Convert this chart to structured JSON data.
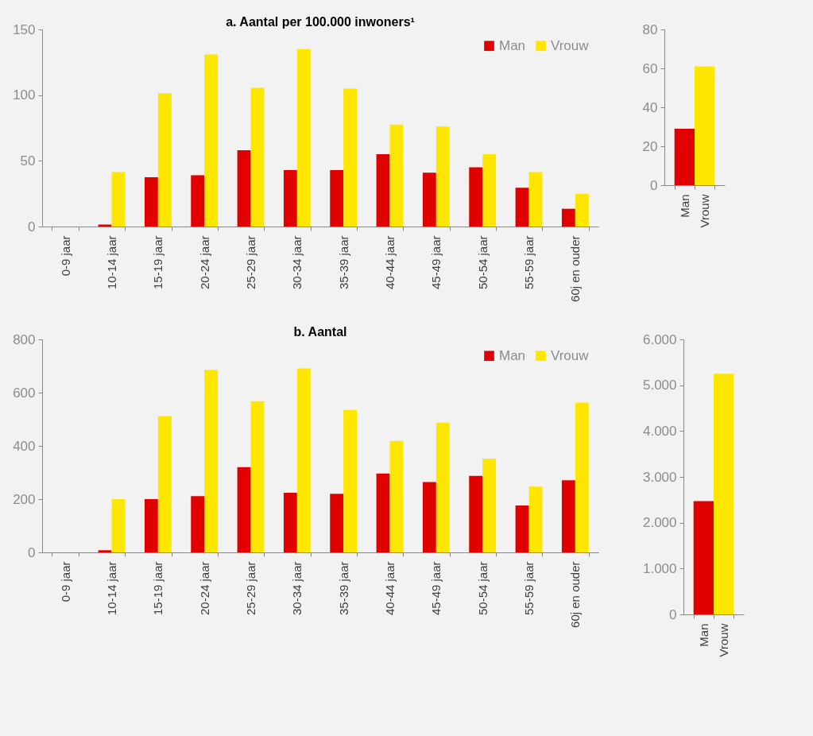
{
  "chart_data": [
    {
      "type": "bar",
      "title": "a. Aantal per 100.000 inwoners¹",
      "categories": [
        "0-9 jaar",
        "10-14 jaar",
        "15-19 jaar",
        "20-24 jaar",
        "25-29 jaar",
        "30-34 jaar",
        "35-39 jaar",
        "40-44 jaar",
        "45-49 jaar",
        "50-54 jaar",
        "55-59 jaar",
        "60j en ouder"
      ],
      "series": [
        {
          "name": "Man",
          "color": "#e00000",
          "values": [
            0,
            1.5,
            37.5,
            39,
            58,
            43,
            43,
            55,
            41,
            45,
            29.5,
            13.5
          ]
        },
        {
          "name": "Vrouw",
          "color": "#ffe600",
          "values": [
            0,
            41.5,
            101.5,
            131,
            105.5,
            135,
            105,
            77.5,
            76,
            55,
            41.5,
            25
          ]
        }
      ],
      "ylim": [
        0,
        150
      ],
      "yticks": [
        0,
        50,
        100,
        150
      ],
      "legend": "top right"
    },
    {
      "type": "bar",
      "categories": [
        "Man",
        "Vrouw"
      ],
      "values": [
        29,
        61
      ],
      "colors": [
        "#e00000",
        "#ffe600"
      ],
      "ylim": [
        0,
        80
      ],
      "yticks": [
        0,
        20,
        40,
        60,
        80
      ]
    },
    {
      "type": "bar",
      "title": "b. Aantal",
      "categories": [
        "0-9 jaar",
        "10-14 jaar",
        "15-19 jaar",
        "20-24 jaar",
        "25-29 jaar",
        "30-34 jaar",
        "35-39 jaar",
        "40-44 jaar",
        "45-49 jaar",
        "50-54 jaar",
        "55-59 jaar",
        "60j en ouder"
      ],
      "series": [
        {
          "name": "Man",
          "color": "#e00000",
          "values": [
            0,
            8,
            200,
            211,
            320,
            224,
            220,
            296,
            264,
            287,
            176,
            271
          ]
        },
        {
          "name": "Vrouw",
          "color": "#ffe600",
          "values": [
            0,
            200,
            512,
            686,
            568,
            691,
            535,
            419,
            487,
            352,
            247,
            563
          ]
        }
      ],
      "ylim": [
        0,
        800
      ],
      "yticks": [
        0,
        200,
        400,
        600,
        800
      ],
      "legend": "top right"
    },
    {
      "type": "bar",
      "categories": [
        "Man",
        "Vrouw"
      ],
      "values": [
        2470,
        5250
      ],
      "colors": [
        "#e00000",
        "#ffe600"
      ],
      "ylim": [
        0,
        6000
      ],
      "yticks": [
        0,
        {
          "value": 1000,
          "label": "1.000"
        },
        {
          "value": 2000,
          "label": "2.000"
        },
        {
          "value": 3000,
          "label": "3.000"
        },
        {
          "value": 4000,
          "label": "4.000"
        },
        {
          "value": 5000,
          "label": "5.000"
        },
        {
          "value": 6000,
          "label": "6.000"
        }
      ]
    }
  ]
}
